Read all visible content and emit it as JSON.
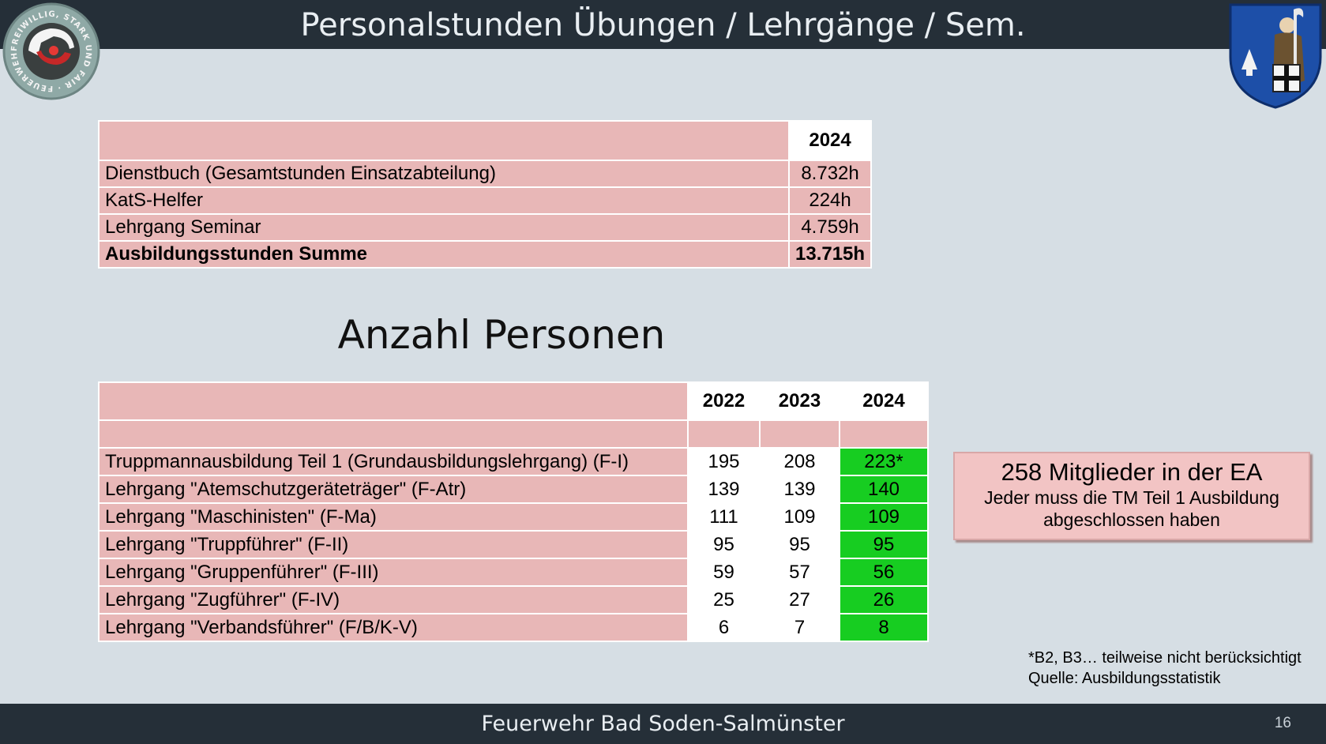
{
  "header": {
    "title": "Personalstunden Übungen / Lehrgänge / Sem."
  },
  "logos": {
    "left_ring_text": "FREIWILLIG, STARK UND FAIR · FEUERWEHR"
  },
  "hours_table": {
    "header_year": "2024",
    "rows": [
      {
        "label": "Dienstbuch (Gesamtstunden Einsatzabteilung)",
        "value": "8.732h"
      },
      {
        "label": "KatS-Helfer",
        "value": "224h"
      },
      {
        "label": "Lehrgang Seminar",
        "value": "4.759h"
      }
    ],
    "total": {
      "label": "Ausbildungsstunden Summe",
      "value": "13.715h"
    }
  },
  "section_heading": "Anzahl Personen",
  "persons_table": {
    "years": [
      "2022",
      "2023",
      "2024"
    ],
    "rows": [
      {
        "label": "Truppmannausbildung Teil 1 (Grundausbildungslehrgang) (F-I)",
        "values": [
          "195",
          "208",
          "223*"
        ]
      },
      {
        "label": "Lehrgang \"Atemschutzgeräteträger\" (F-Atr)",
        "values": [
          "139",
          "139",
          "140"
        ]
      },
      {
        "label": "Lehrgang \"Maschinisten\" (F-Ma)",
        "values": [
          "111",
          "109",
          "109"
        ]
      },
      {
        "label": "Lehrgang \"Truppführer\" (F-II)",
        "values": [
          "95",
          "95",
          "95"
        ]
      },
      {
        "label": "Lehrgang \"Gruppenführer\" (F-III)",
        "values": [
          "59",
          "57",
          "56"
        ]
      },
      {
        "label": "Lehrgang \"Zugführer\" (F-IV)",
        "values": [
          "25",
          "27",
          "26"
        ]
      },
      {
        "label": "Lehrgang \"Verbandsführer\" (F/B/K-V)",
        "values": [
          "6",
          "7",
          "8"
        ]
      }
    ]
  },
  "info_box": {
    "line1": "258 Mitglieder in der EA",
    "line2": "Jeder muss die TM Teil 1 Ausbildung",
    "line3": "abgeschlossen haben"
  },
  "footnote": {
    "line1": "*B2, B3… teilweise nicht berücksichtigt",
    "line2": "Quelle: Ausbildungsstatistik"
  },
  "footer": {
    "text": "Feuerwehr Bad Soden-Salmünster",
    "page_number": "16"
  },
  "colors": {
    "header_bg": "#252f38",
    "slide_bg": "#d6dee4",
    "table_pink": "#e8b7b7",
    "highlight_green": "#17cd21",
    "box_pink": "#f2c4c4"
  }
}
